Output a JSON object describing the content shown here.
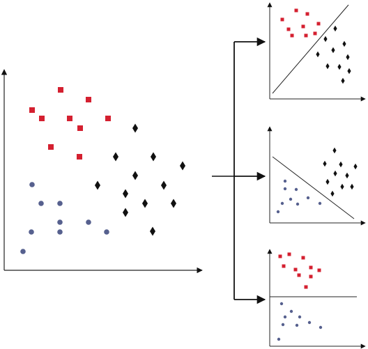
{
  "colors": {
    "class_square": "#d42030",
    "class_diamond": "#111111",
    "class_circle": "#56608e",
    "axis": "#222222",
    "background": "#ffffff"
  },
  "icons": {
    "square": "red-square-marker",
    "diamond": "black-diamond-marker",
    "circle": "blue-circle-marker",
    "arrow": "arrowhead"
  },
  "main_plot": {
    "squares": [
      [
        87,
        129
      ],
      [
        127,
        143
      ],
      [
        46,
        158
      ],
      [
        60,
        170
      ],
      [
        100,
        170
      ],
      [
        155,
        170
      ],
      [
        115,
        184
      ],
      [
        73,
        211
      ],
      [
        114,
        225
      ]
    ],
    "diamonds": [
      [
        194,
        184
      ],
      [
        166,
        225
      ],
      [
        220,
        225
      ],
      [
        262,
        238
      ],
      [
        194,
        252
      ],
      [
        140,
        266
      ],
      [
        235,
        266
      ],
      [
        180,
        278
      ],
      [
        208,
        292
      ],
      [
        249,
        292
      ],
      [
        180,
        305
      ],
      [
        219,
        332
      ]
    ],
    "circles": [
      [
        46,
        265
      ],
      [
        59,
        292
      ],
      [
        86,
        292
      ],
      [
        86,
        319
      ],
      [
        127,
        319
      ],
      [
        45,
        333
      ],
      [
        86,
        333
      ],
      [
        153,
        333
      ],
      [
        33,
        361
      ]
    ]
  },
  "panels": [
    {
      "id": "top",
      "separator": "diagonal-up",
      "squares": [
        [
          405,
          28
        ],
        [
          425,
          15
        ],
        [
          441,
          20
        ],
        [
          414,
          42
        ],
        [
          435,
          38
        ],
        [
          457,
          34
        ],
        [
          419,
          51
        ],
        [
          439,
          51
        ],
        [
          452,
          48
        ]
      ],
      "diamonds": [
        [
          481,
          41
        ],
        [
          467,
          56
        ],
        [
          494,
          63
        ],
        [
          456,
          78
        ],
        [
          478,
          72
        ],
        [
          499,
          82
        ],
        [
          470,
          95
        ],
        [
          487,
          96
        ],
        [
          501,
          102
        ],
        [
          492,
          116
        ]
      ],
      "circles": []
    },
    {
      "id": "middle",
      "separator": "diagonal-down",
      "squares": [],
      "diamonds": [
        [
          480,
          216
        ],
        [
          466,
          235
        ],
        [
          489,
          236
        ],
        [
          510,
          239
        ],
        [
          481,
          249
        ],
        [
          498,
          252
        ],
        [
          470,
          261
        ],
        [
          491,
          268
        ],
        [
          505,
          268
        ],
        [
          477,
          278
        ]
      ],
      "circles": [
        [
          409,
          260
        ],
        [
          409,
          271
        ],
        [
          425,
          272
        ],
        [
          442,
          284
        ],
        [
          427,
          293
        ],
        [
          405,
          292
        ],
        [
          417,
          286
        ],
        [
          459,
          292
        ],
        [
          399,
          304
        ]
      ]
    },
    {
      "id": "bottom",
      "separator": "horizontal",
      "squares": [
        [
          402,
          368
        ],
        [
          415,
          365
        ],
        [
          435,
          370
        ],
        [
          407,
          382
        ],
        [
          424,
          387
        ],
        [
          446,
          384
        ],
        [
          458,
          388
        ],
        [
          429,
          395
        ],
        [
          446,
          397
        ],
        [
          439,
          412
        ]
      ],
      "diamonds": [],
      "circles": [
        [
          404,
          436
        ],
        [
          418,
          447
        ],
        [
          409,
          455
        ],
        [
          430,
          455
        ],
        [
          406,
          466
        ],
        [
          444,
          463
        ],
        [
          426,
          467
        ],
        [
          460,
          470
        ],
        [
          400,
          487
        ]
      ]
    }
  ]
}
